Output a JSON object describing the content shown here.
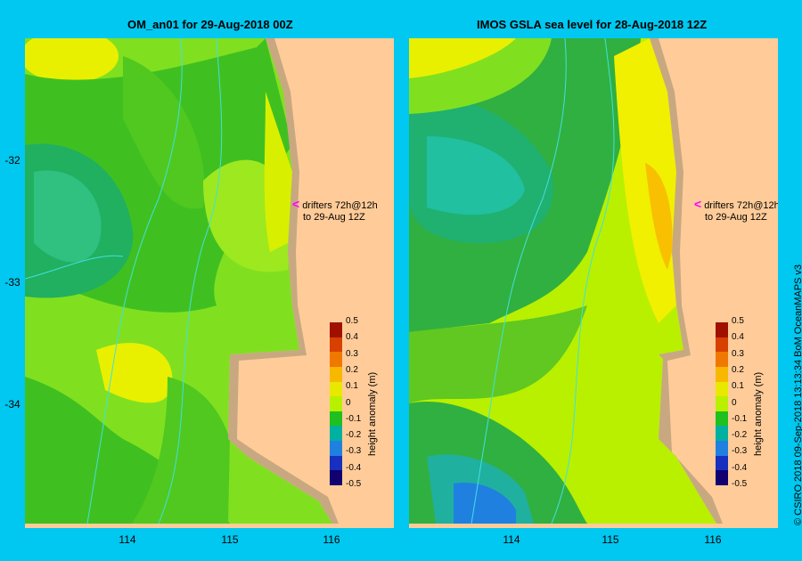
{
  "left_panel": {
    "title": "OM_an01  for 29-Aug-2018 00Z"
  },
  "right_panel": {
    "title": "IMOS GSLA sea level  for 28-Aug-2018 12Z"
  },
  "y_ticks": [
    "-32",
    "-33",
    "-34"
  ],
  "x_ticks": [
    "114",
    "115",
    "116"
  ],
  "drifter_note": {
    "line1": "drifters 72h@12h",
    "line2": "to 29-Aug 12Z",
    "arrow": "<",
    "arrow_color": "#ff00ff"
  },
  "colorbar": {
    "title": "height anomaly (m)",
    "labels": [
      "0.5",
      "0.4",
      "0.3",
      "0.2",
      "0.1",
      "0",
      "-0.1",
      "-0.2",
      "-0.3",
      "-0.4",
      "-0.5"
    ],
    "colors": [
      "#a01000",
      "#d84000",
      "#f07800",
      "#f8b800",
      "#e8e800",
      "#b8f000",
      "#20c020",
      "#00b0a0",
      "#2080e0",
      "#1830c0",
      "#100070"
    ]
  },
  "credit": "© CSIRO 2018   09-Sep-2018 13:13:34 BoM OceanMAPS v3",
  "colors": {
    "land": "#ffcc99",
    "frame": "#00c8f0",
    "coast_shelf": "#c8a880",
    "bathymetry": "#40e0e0"
  }
}
